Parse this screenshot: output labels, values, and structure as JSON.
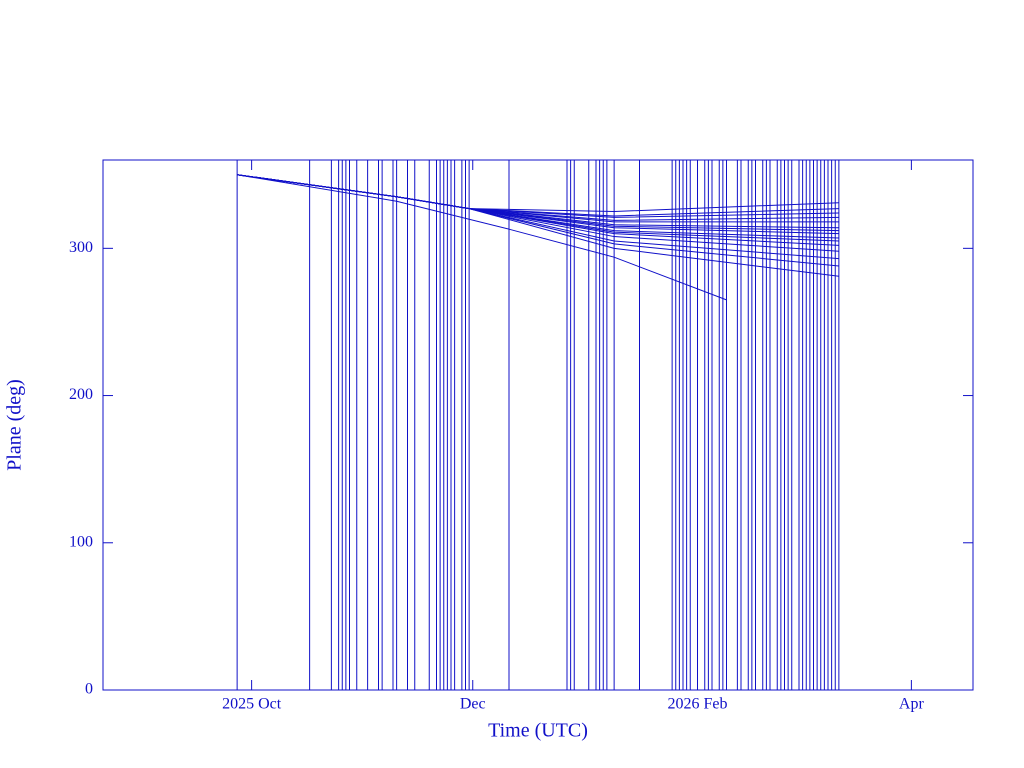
{
  "chart_data": {
    "type": "line",
    "x_label": "Time (UTC)",
    "y_label": "Plane (deg)",
    "color": "#1010c8",
    "xlim": [
      -41,
      199
    ],
    "xticks": [
      {
        "value": 0,
        "label": "2025 Oct"
      },
      {
        "value": 61,
        "label": "Dec"
      },
      {
        "value": 123,
        "label": "2026 Feb"
      },
      {
        "value": 182,
        "label": "Apr"
      }
    ],
    "ylim": [
      0,
      360
    ],
    "yticks": [
      0,
      100,
      200,
      300
    ],
    "events": [
      -4,
      16,
      22,
      24,
      25,
      26,
      27,
      29,
      32,
      35,
      36,
      39,
      40,
      43,
      45,
      49,
      51,
      52,
      53,
      54,
      55,
      56,
      58,
      59,
      60,
      71,
      87,
      88,
      89,
      93,
      95,
      96,
      97,
      98,
      100,
      107,
      116,
      117,
      118,
      119,
      120,
      121,
      123,
      125,
      126,
      127,
      129,
      130,
      131,
      134,
      135,
      137,
      138,
      139,
      141,
      142,
      143,
      145,
      146,
      147,
      148,
      149,
      151,
      152,
      153,
      154,
      155,
      156,
      157,
      158,
      159,
      160,
      161,
      162
    ],
    "series": [
      {
        "x": [
          -4,
          40,
          71,
          100,
          131
        ],
        "values": [
          350,
          332,
          313,
          294,
          265
        ]
      },
      {
        "x": [
          -4,
          40,
          60,
          100,
          162
        ],
        "values": [
          350,
          335,
          327,
          325,
          331
        ]
      },
      {
        "x": [
          -4,
          40,
          60,
          100,
          162
        ],
        "values": [
          350,
          335,
          327,
          322,
          327
        ]
      },
      {
        "x": [
          -4,
          40,
          60,
          100,
          162
        ],
        "values": [
          350,
          335,
          327,
          321,
          324
        ]
      },
      {
        "x": [
          -4,
          40,
          60,
          100,
          162
        ],
        "values": [
          350,
          335,
          327,
          319,
          321
        ]
      },
      {
        "x": [
          -4,
          40,
          60,
          100,
          162
        ],
        "values": [
          350,
          335,
          327,
          318,
          318
        ]
      },
      {
        "x": [
          -4,
          40,
          60,
          100,
          162
        ],
        "values": [
          350,
          335,
          327,
          316,
          314
        ]
      },
      {
        "x": [
          -4,
          40,
          60,
          100,
          162
        ],
        "values": [
          350,
          335,
          327,
          315,
          312
        ]
      },
      {
        "x": [
          -4,
          40,
          60,
          100,
          162
        ],
        "values": [
          350,
          335,
          327,
          314,
          310
        ]
      },
      {
        "x": [
          -4,
          40,
          60,
          100,
          162
        ],
        "values": [
          350,
          335,
          327,
          312,
          307
        ]
      },
      {
        "x": [
          -4,
          40,
          60,
          100,
          162
        ],
        "values": [
          350,
          335,
          327,
          311,
          305
        ]
      },
      {
        "x": [
          -4,
          40,
          60,
          100,
          162
        ],
        "values": [
          350,
          335,
          327,
          310,
          302
        ]
      },
      {
        "x": [
          -4,
          40,
          60,
          100,
          162
        ],
        "values": [
          350,
          335,
          327,
          308,
          298
        ]
      },
      {
        "x": [
          -4,
          40,
          60,
          100,
          162
        ],
        "values": [
          350,
          335,
          327,
          305,
          293
        ]
      },
      {
        "x": [
          -4,
          40,
          60,
          100,
          162
        ],
        "values": [
          350,
          335,
          327,
          303,
          288
        ]
      },
      {
        "x": [
          -4,
          40,
          60,
          100,
          162
        ],
        "values": [
          350,
          335,
          327,
          300,
          281
        ]
      }
    ]
  }
}
